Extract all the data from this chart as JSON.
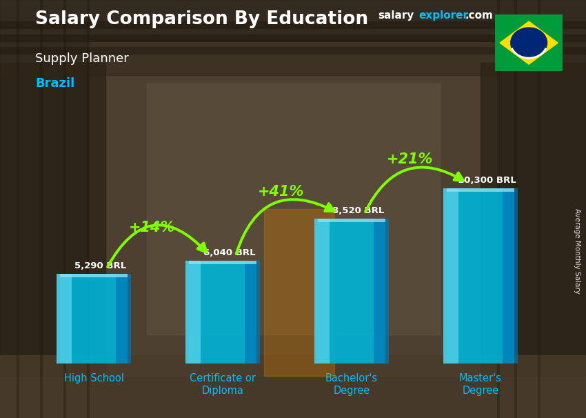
{
  "title_bold": "Salary Comparison By Education",
  "subtitle": "Supply Planner",
  "country": "Brazil",
  "site_salary": "salary",
  "site_explorer": "explorer",
  "site_domain": ".com",
  "categories": [
    "High School",
    "Certificate or\nDiploma",
    "Bachelor's\nDegree",
    "Master's\nDegree"
  ],
  "values": [
    5290,
    6040,
    8520,
    10300
  ],
  "value_labels": [
    "5,290 BRL",
    "6,040 BRL",
    "8,520 BRL",
    "10,300 BRL"
  ],
  "pct_labels": [
    "+14%",
    "+41%",
    "+21%"
  ],
  "bar_color_main": "#00B4D8",
  "bar_color_light": "#48CAE4",
  "bar_color_dark": "#0077B6",
  "pct_color": "#7FFF00",
  "title_color": "#FFFFFF",
  "subtitle_color": "#FFFFFF",
  "country_color": "#00BFFF",
  "value_color": "#FFFFFF",
  "xtick_color": "#00BFFF",
  "site_salary_color": "#FFFFFF",
  "site_explorer_color": "#00BFFF",
  "site_domain_color": "#FFFFFF",
  "ylabel_text": "Average Monthly Salary",
  "bg_color": "#4a3728",
  "figsize": [
    8.5,
    6.06
  ],
  "dpi": 100
}
